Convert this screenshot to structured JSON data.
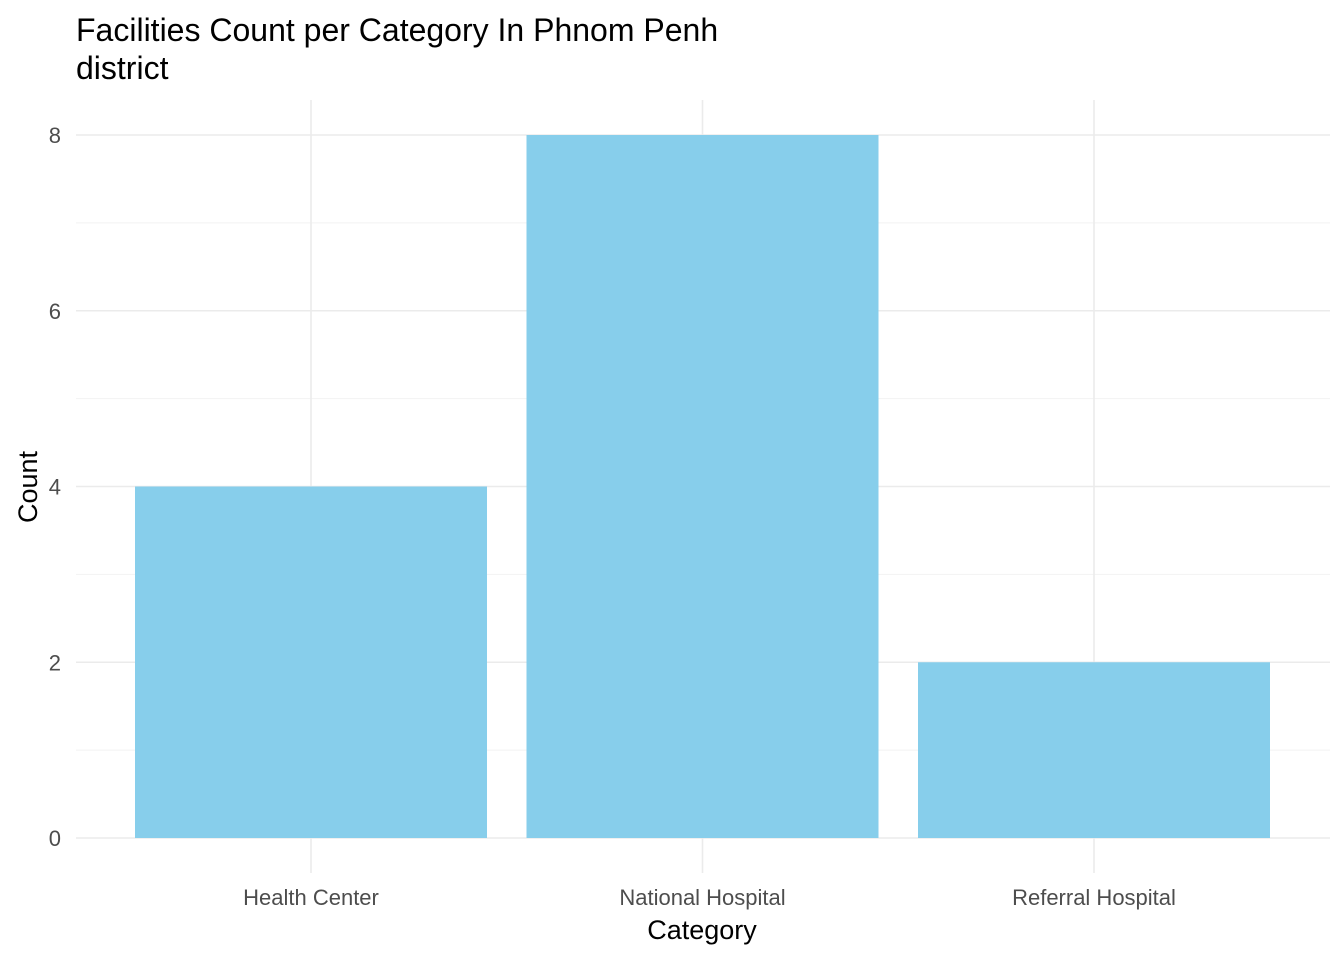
{
  "chart_data": {
    "type": "bar",
    "title_lines": [
      "Facilities Count per Category In Phnom Penh",
      "district"
    ],
    "xlabel": "Category",
    "ylabel": "Count",
    "categories": [
      "Health Center",
      "National Hospital",
      "Referral Hospital"
    ],
    "values": [
      4,
      8,
      2
    ],
    "ylim": [
      0,
      8.2
    ],
    "yticks": [
      0,
      2,
      4,
      6,
      8
    ],
    "ytick_labels": [
      "0",
      "2",
      "4",
      "6",
      "8"
    ],
    "grid": true,
    "legend": "none",
    "bar_color": "#87CEEB",
    "grid_color": "#EBEBEB"
  }
}
